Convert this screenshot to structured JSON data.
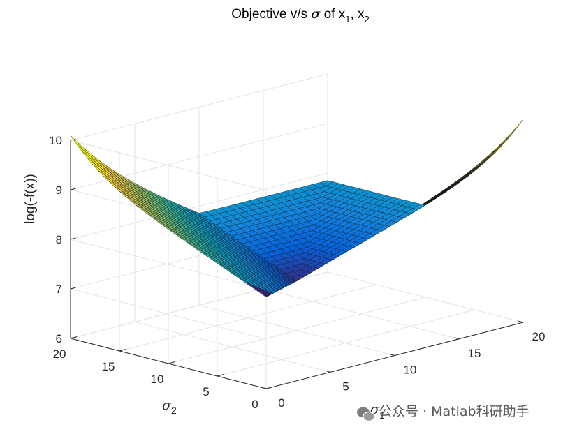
{
  "chart_data": {
    "type": "surface",
    "title_prefix": "Objective v/s ",
    "title_sigma": "σ",
    "title_mid": " of x",
    "title_sub1": "1",
    "title_sep": ", x",
    "title_sub2": "2",
    "xlabel_sigma": "σ",
    "xlabel_sub": "1",
    "ylabel_sigma": "σ",
    "ylabel_sub": "2",
    "zlabel": "log(-f(x))",
    "xlim": [
      0,
      20
    ],
    "ylim": [
      0,
      20
    ],
    "zlim": [
      6,
      10
    ],
    "x_ticks": [
      "0",
      "5",
      "10",
      "15",
      "20"
    ],
    "y_ticks": [
      "0",
      "5",
      "10",
      "15",
      "20"
    ],
    "z_ticks": [
      "6",
      "7",
      "8",
      "9",
      "10"
    ],
    "colormap": "parula",
    "grid": true,
    "surface_samples": [
      {
        "sigma1": 20,
        "sigma2": 0,
        "z": 9.6
      },
      {
        "sigma1": 20,
        "sigma2": 20,
        "z": 9.6
      },
      {
        "sigma1": 0,
        "sigma2": 20,
        "z": 9.6
      },
      {
        "sigma1": 0,
        "sigma2": 0,
        "z": 7.9
      },
      {
        "sigma1": 10,
        "sigma2": 10,
        "z": 7.0
      },
      {
        "sigma1": 20,
        "sigma2": 10,
        "z": 7.9
      },
      {
        "sigma1": 10,
        "sigma2": 20,
        "z": 7.9
      }
    ]
  },
  "watermark": {
    "text": "公众号 · Matlab科研助手",
    "icon": "wechat-icon"
  }
}
